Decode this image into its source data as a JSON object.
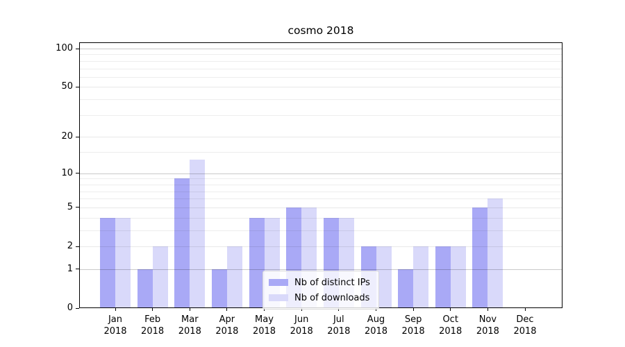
{
  "chart_data": {
    "type": "bar",
    "title": "cosmo 2018",
    "categories": [
      "Jan 2018",
      "Feb 2018",
      "Mar 2018",
      "Apr 2018",
      "May 2018",
      "Jun 2018",
      "Jul 2018",
      "Aug 2018",
      "Sep 2018",
      "Oct 2018",
      "Nov 2018",
      "Dec 2018"
    ],
    "series": [
      {
        "name": "Nb of distinct IPs",
        "key": "distinct-ips",
        "color": "#a9a9f6",
        "values": [
          4,
          1,
          9,
          1,
          4,
          5,
          4,
          2,
          1,
          2,
          5,
          0
        ]
      },
      {
        "name": "Nb of downloads",
        "key": "downloads",
        "color": "#d9d9fa",
        "values": [
          4,
          2,
          13,
          2,
          4,
          5,
          4,
          2,
          2,
          2,
          6,
          0
        ]
      }
    ],
    "yscale": "log1p",
    "ylim": [
      0,
      100
    ],
    "yticks": [
      0,
      1,
      2,
      5,
      10,
      20,
      50,
      100
    ],
    "decade_gridlines": [
      1,
      10,
      100
    ],
    "minor_gridlines": [
      3,
      4,
      6,
      7,
      8,
      9,
      15,
      30,
      40,
      60,
      70,
      80,
      90
    ],
    "grid": true,
    "legend_position": "lower center"
  }
}
